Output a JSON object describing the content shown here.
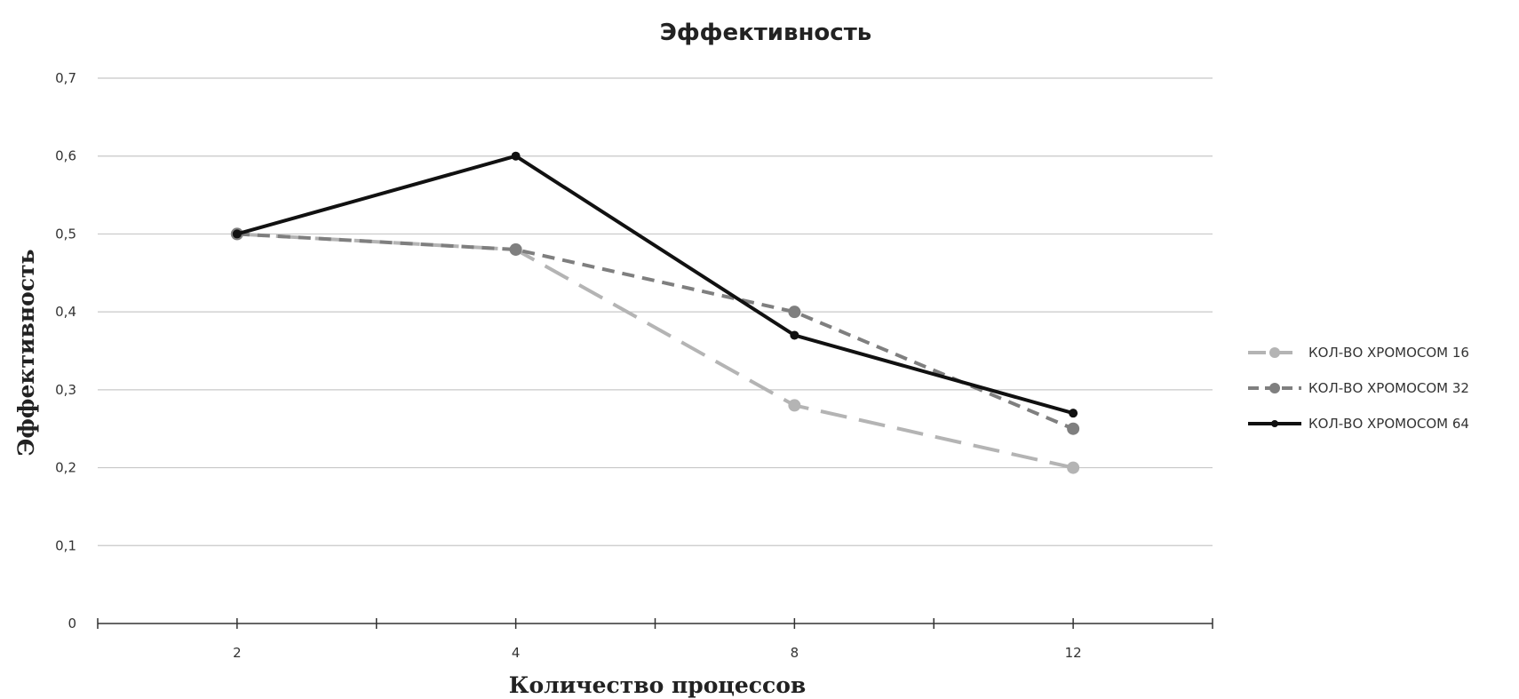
{
  "chart_data": {
    "type": "line",
    "title": "Эффективность",
    "xlabel": "Количество процессов",
    "ylabel": "Эффективность",
    "categories": [
      "2",
      "4",
      "8",
      "12"
    ],
    "x_ticks_intermediate": true,
    "ylim": [
      0,
      0.7
    ],
    "y_ticks": [
      "0",
      "0,1",
      "0,2",
      "0,3",
      "0,4",
      "0,5",
      "0,6",
      "0,7"
    ],
    "grid": true,
    "legend_position": "right",
    "series": [
      {
        "name": "КОЛ-ВО ХРОМОСОМ 16",
        "values": [
          0.5,
          0.48,
          0.28,
          0.2
        ],
        "color": "#b4b4b4",
        "style": "long-dash"
      },
      {
        "name": "КОЛ-ВО ХРОМОСОМ 32",
        "values": [
          0.5,
          0.48,
          0.4,
          0.25
        ],
        "color": "#7f7f7f",
        "style": "dash"
      },
      {
        "name": "КОЛ-ВО ХРОМОСОМ 64",
        "values": [
          0.5,
          0.6,
          0.37,
          0.27
        ],
        "color": "#111111",
        "style": "solid"
      }
    ]
  }
}
